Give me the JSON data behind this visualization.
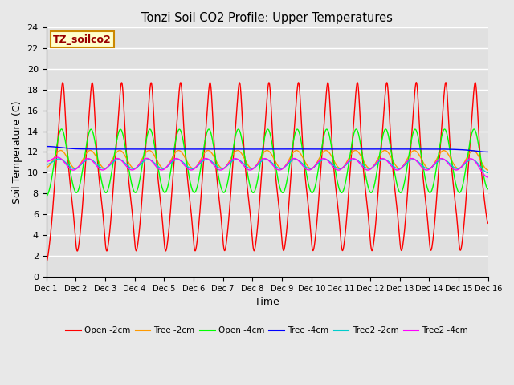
{
  "title": "Tonzi Soil CO2 Profile: Upper Temperatures",
  "xlabel": "Time",
  "ylabel": "Soil Temperature (C)",
  "ylim": [
    0,
    24
  ],
  "xlim": [
    0,
    15
  ],
  "figure_bg": "#e8e8e8",
  "plot_bg": "#e0e0e0",
  "grid_color": "#ffffff",
  "annotation_text": "TZ_soilco2",
  "annotation_bg": "#ffffcc",
  "annotation_border": "#cc8800",
  "series": [
    {
      "label": "Open -2cm",
      "color": "#ff0000",
      "amp": 9.5,
      "base": 11.0,
      "phase": 0.0,
      "smooth": 0.25
    },
    {
      "label": "Tree -2cm",
      "color": "#ff9900",
      "amp": 3.5,
      "base": 11.0,
      "phase": 0.15,
      "smooth": 0.4
    },
    {
      "label": "Open -4cm",
      "color": "#00ff00",
      "amp": 5.5,
      "base": 11.0,
      "phase": 0.05,
      "smooth": 0.35
    },
    {
      "label": "Tree -4cm",
      "color": "#0000ff",
      "amp": 1.8,
      "base": 12.2,
      "phase": 0.3,
      "smooth": 0.7
    },
    {
      "label": "Tree2 -2cm",
      "color": "#00cccc",
      "amp": 3.0,
      "base": 10.0,
      "phase": 0.2,
      "smooth": 0.5
    },
    {
      "label": "Tree2 -4cm",
      "color": "#ff00ff",
      "amp": 3.2,
      "base": 10.5,
      "phase": 0.25,
      "smooth": 0.45
    }
  ],
  "xtick_labels": [
    "Dec 1",
    "Dec 2",
    "Dec 3",
    "Dec 4",
    "Dec 5",
    "Dec 6",
    "Dec 7",
    "Dec 8",
    "Dec 9",
    "Dec 10",
    "Dec 11",
    "Dec 12",
    "Dec 13",
    "Dec 14",
    "Dec 15",
    "Dec 16"
  ],
  "num_days": 15,
  "points_per_day": 240
}
